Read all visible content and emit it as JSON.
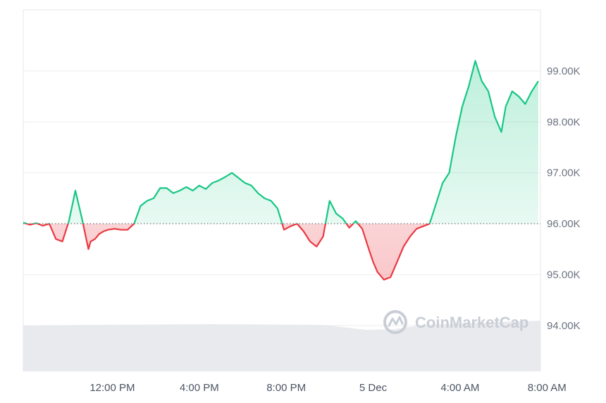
{
  "chart_data": {
    "type": "area",
    "baseline": 96000,
    "ylim": [
      93100,
      100200
    ],
    "y_ticks": [
      {
        "value": 99000,
        "label": "99.00K"
      },
      {
        "value": 98000,
        "label": "98.00K"
      },
      {
        "value": 97000,
        "label": "97.00K"
      },
      {
        "value": 96000,
        "label": "96.00K"
      },
      {
        "value": 95000,
        "label": "95.00K"
      },
      {
        "value": 94000,
        "label": "94.00K"
      }
    ],
    "x_ticks": [
      {
        "hour": 12,
        "label": "12:00 PM"
      },
      {
        "hour": 16,
        "label": "4:00 PM"
      },
      {
        "hour": 20,
        "label": "8:00 PM"
      },
      {
        "hour": 24,
        "label": "5 Dec"
      },
      {
        "hour": 28,
        "label": "4:00 AM"
      },
      {
        "hour": 32,
        "label": "8:00 AM"
      }
    ],
    "xlim_hours": [
      7.9,
      31.7
    ],
    "x_hours": [
      7.9,
      8.2,
      8.5,
      8.8,
      9.1,
      9.4,
      9.7,
      10.0,
      10.3,
      10.6,
      10.9,
      11.0,
      11.2,
      11.4,
      11.6,
      11.8,
      12.1,
      12.4,
      12.7,
      13.0,
      13.3,
      13.6,
      13.9,
      14.2,
      14.5,
      14.8,
      15.1,
      15.4,
      15.7,
      16.0,
      16.3,
      16.6,
      16.9,
      17.2,
      17.5,
      17.8,
      18.1,
      18.4,
      18.7,
      19.0,
      19.3,
      19.6,
      19.9,
      20.2,
      20.5,
      20.8,
      21.1,
      21.4,
      21.7,
      22.0,
      22.3,
      22.6,
      22.9,
      23.2,
      23.5,
      23.8,
      24.0,
      24.2,
      24.5,
      24.8,
      25.1,
      25.4,
      25.7,
      26.0,
      26.3,
      26.6,
      26.9,
      27.2,
      27.5,
      27.8,
      28.1,
      28.4,
      28.7,
      29.0,
      29.3,
      29.6,
      29.9,
      30.1,
      30.4,
      30.7,
      31.0,
      31.3,
      31.6
    ],
    "values": [
      96020,
      95980,
      96010,
      95960,
      96000,
      95700,
      95650,
      96050,
      96650,
      96100,
      95500,
      95650,
      95700,
      95800,
      95850,
      95880,
      95900,
      95880,
      95880,
      96000,
      96350,
      96450,
      96500,
      96700,
      96700,
      96600,
      96650,
      96720,
      96650,
      96750,
      96680,
      96800,
      96850,
      96920,
      97000,
      96900,
      96800,
      96750,
      96600,
      96500,
      96450,
      96300,
      95880,
      95950,
      96000,
      95850,
      95650,
      95550,
      95750,
      96450,
      96200,
      96100,
      95920,
      96050,
      95900,
      95500,
      95250,
      95050,
      94900,
      94950,
      95250,
      95550,
      95750,
      95900,
      95950,
      96000,
      96400,
      96800,
      97000,
      97700,
      98300,
      98700,
      99200,
      98800,
      98600,
      98100,
      97800,
      98300,
      98600,
      98500,
      98350,
      98600,
      98800
    ],
    "volume_note": "grey volume area at bottom"
  },
  "watermark": {
    "text": "CoinMarketCap"
  },
  "colors": {
    "up": "#16c784",
    "down": "#ea3943",
    "up_fill": "#16c784",
    "down_fill": "#ea3943",
    "grid": "#eeeeee",
    "volume": "#e8eaed"
  }
}
